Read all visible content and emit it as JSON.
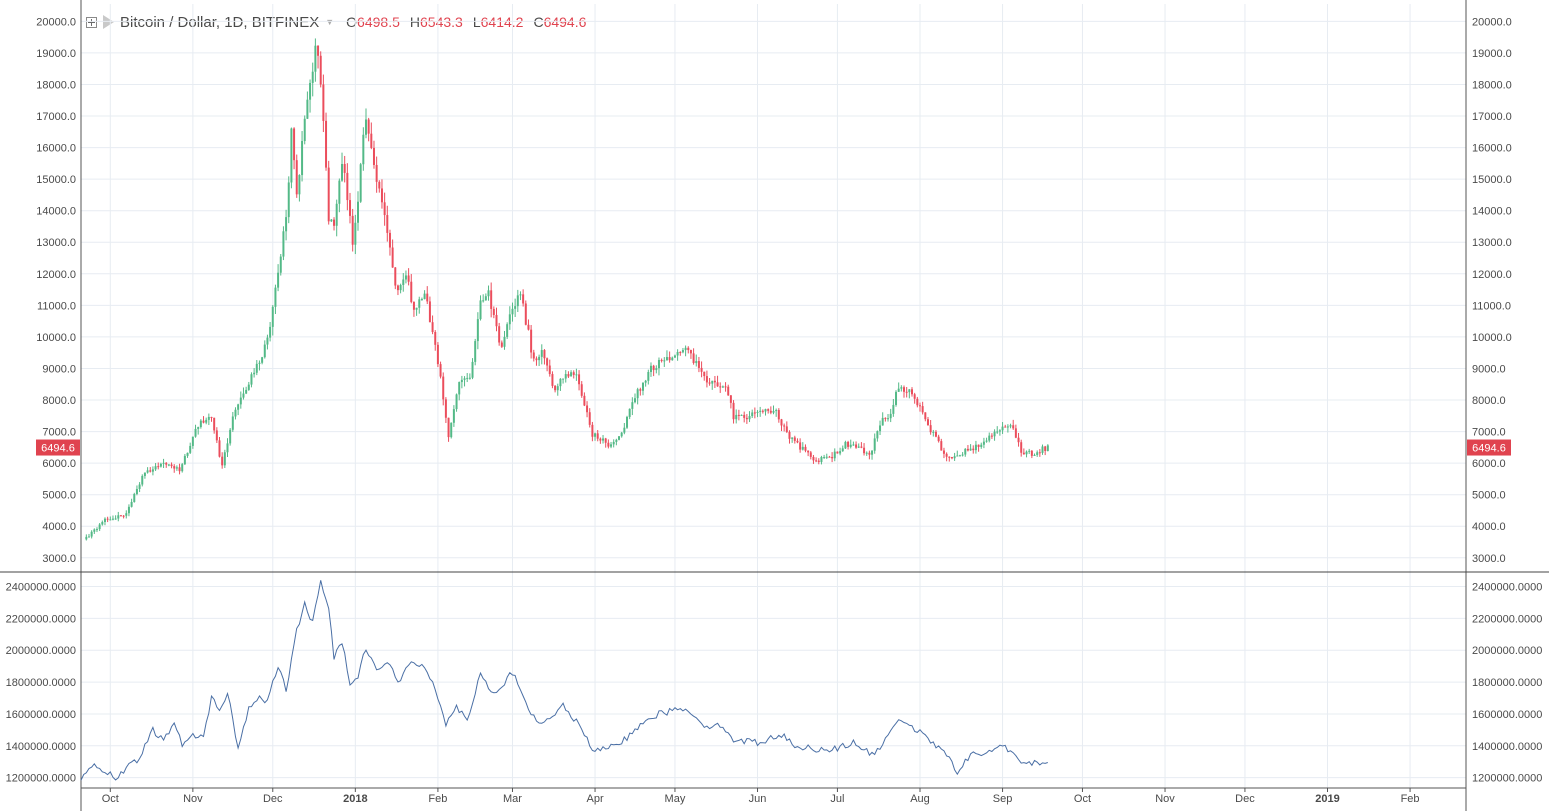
{
  "header": {
    "title": "Bitcoin / Dollar, 1D, BITFINEX",
    "ohlc": [
      {
        "label": "O",
        "value": "6498.5"
      },
      {
        "label": "H",
        "value": "6543.3"
      },
      {
        "label": "L",
        "value": "6414.2"
      },
      {
        "label": "C",
        "value": "6494.6"
      }
    ]
  },
  "colors": {
    "up": "#53b987",
    "down": "#eb4d5c",
    "volume_line": "#4a6fa5",
    "grid": "#e7ecf2",
    "axis_text": "#4a4a4a",
    "price_tag_bg": "#e0434f"
  },
  "chart_data": [
    {
      "type": "candlestick",
      "symbol": "Bitcoin / Dollar",
      "interval": "1D",
      "exchange": "BITFINEX",
      "last_price": "6494.6",
      "y_ticks": [
        "3000.0",
        "4000.0",
        "5000.0",
        "6000.0",
        "7000.0",
        "8000.0",
        "9000.0",
        "10000.0",
        "11000.0",
        "12000.0",
        "13000.0",
        "14000.0",
        "15000.0",
        "16000.0",
        "17000.0",
        "18000.0",
        "19000.0",
        "20000.0"
      ],
      "ylim": [
        2550,
        20550
      ],
      "x_ticks": [
        "Oct",
        "Nov",
        "Dec",
        "2018",
        "Feb",
        "Mar",
        "Apr",
        "May",
        "Jun",
        "Jul",
        "Aug",
        "Sep",
        "Oct",
        "Nov",
        "Dec",
        "2019",
        "Feb"
      ],
      "x_tick_dates": [
        "2017-10-01",
        "2017-11-01",
        "2017-12-01",
        "2018-01-01",
        "2018-02-01",
        "2018-03-01",
        "2018-04-01",
        "2018-05-01",
        "2018-06-01",
        "2018-07-01",
        "2018-08-01",
        "2018-09-01",
        "2018-10-01",
        "2018-11-01",
        "2018-12-01",
        "2019-01-01",
        "2019-02-01"
      ],
      "x_range": [
        "2017-09-20",
        "2019-02-22"
      ],
      "close_anchors": [
        [
          "2017-09-22",
          3620
        ],
        [
          "2017-09-29",
          4200
        ],
        [
          "2017-10-07",
          4400
        ],
        [
          "2017-10-13",
          5600
        ],
        [
          "2017-10-20",
          5950
        ],
        [
          "2017-10-27",
          5800
        ],
        [
          "2017-11-03",
          7200
        ],
        [
          "2017-11-08",
          7400
        ],
        [
          "2017-11-12",
          5900
        ],
        [
          "2017-11-17",
          7800
        ],
        [
          "2017-11-26",
          9200
        ],
        [
          "2017-11-29",
          9900
        ],
        [
          "2017-12-06",
          13700
        ],
        [
          "2017-12-08",
          16400
        ],
        [
          "2017-12-10",
          14500
        ],
        [
          "2017-12-13",
          16800
        ],
        [
          "2017-12-17",
          19100
        ],
        [
          "2017-12-19",
          18200
        ],
        [
          "2017-12-22",
          13800
        ],
        [
          "2017-12-24",
          13700
        ],
        [
          "2017-12-27",
          15600
        ],
        [
          "2017-12-31",
          13100
        ],
        [
          "2018-01-02",
          14500
        ],
        [
          "2018-01-05",
          17100
        ],
        [
          "2018-01-09",
          15000
        ],
        [
          "2018-01-12",
          13800
        ],
        [
          "2018-01-16",
          11500
        ],
        [
          "2018-01-20",
          12000
        ],
        [
          "2018-01-23",
          10900
        ],
        [
          "2018-01-27",
          11400
        ],
        [
          "2018-01-30",
          10200
        ],
        [
          "2018-02-02",
          8700
        ],
        [
          "2018-02-05",
          6900
        ],
        [
          "2018-02-09",
          8500
        ],
        [
          "2018-02-13",
          8700
        ],
        [
          "2018-02-17",
          11100
        ],
        [
          "2018-02-20",
          11400
        ],
        [
          "2018-02-25",
          9600
        ],
        [
          "2018-03-01",
          10900
        ],
        [
          "2018-03-04",
          11400
        ],
        [
          "2018-03-09",
          9200
        ],
        [
          "2018-03-12",
          9500
        ],
        [
          "2018-03-17",
          8200
        ],
        [
          "2018-03-21",
          8900
        ],
        [
          "2018-03-25",
          8800
        ],
        [
          "2018-03-31",
          6900
        ],
        [
          "2018-04-06",
          6600
        ],
        [
          "2018-04-11",
          6900
        ],
        [
          "2018-04-15",
          7900
        ],
        [
          "2018-04-21",
          8900
        ],
        [
          "2018-04-26",
          9200
        ],
        [
          "2018-05-05",
          9700
        ],
        [
          "2018-05-08",
          9300
        ],
        [
          "2018-05-13",
          8600
        ],
        [
          "2018-05-20",
          8500
        ],
        [
          "2018-05-23",
          7500
        ],
        [
          "2018-05-31",
          7500
        ],
        [
          "2018-06-08",
          7700
        ],
        [
          "2018-06-12",
          6900
        ],
        [
          "2018-06-17",
          6500
        ],
        [
          "2018-06-23",
          6100
        ],
        [
          "2018-06-29",
          6200
        ],
        [
          "2018-07-04",
          6600
        ],
        [
          "2018-07-10",
          6400
        ],
        [
          "2018-07-13",
          6200
        ],
        [
          "2018-07-17",
          7300
        ],
        [
          "2018-07-20",
          7400
        ],
        [
          "2018-07-24",
          8400
        ],
        [
          "2018-07-29",
          8200
        ],
        [
          "2018-08-03",
          7400
        ],
        [
          "2018-08-10",
          6300
        ],
        [
          "2018-08-14",
          6200
        ],
        [
          "2018-08-19",
          6400
        ],
        [
          "2018-08-25",
          6700
        ],
        [
          "2018-08-30",
          7000
        ],
        [
          "2018-09-04",
          7300
        ],
        [
          "2018-09-08",
          6400
        ],
        [
          "2018-09-12",
          6300
        ],
        [
          "2018-09-18",
          6500
        ]
      ]
    },
    {
      "type": "line",
      "name": "indicator",
      "y_ticks": [
        "1200000.0000",
        "1400000.0000",
        "1600000.0000",
        "1800000.0000",
        "2000000.0000",
        "2200000.0000",
        "2400000.0000"
      ],
      "ylim": [
        1135000,
        2485000
      ],
      "anchors": [
        [
          "2017-09-20",
          1200000
        ],
        [
          "2017-09-25",
          1270000
        ],
        [
          "2017-09-30",
          1230000
        ],
        [
          "2017-10-03",
          1190000
        ],
        [
          "2017-10-08",
          1270000
        ],
        [
          "2017-10-12",
          1320000
        ],
        [
          "2017-10-17",
          1500000
        ],
        [
          "2017-10-21",
          1430000
        ],
        [
          "2017-10-25",
          1550000
        ],
        [
          "2017-10-28",
          1400000
        ],
        [
          "2017-11-01",
          1470000
        ],
        [
          "2017-11-05",
          1460000
        ],
        [
          "2017-11-08",
          1700000
        ],
        [
          "2017-11-11",
          1620000
        ],
        [
          "2017-11-14",
          1740000
        ],
        [
          "2017-11-18",
          1380000
        ],
        [
          "2017-11-22",
          1640000
        ],
        [
          "2017-11-26",
          1700000
        ],
        [
          "2017-11-29",
          1680000
        ],
        [
          "2017-12-03",
          1900000
        ],
        [
          "2017-12-06",
          1750000
        ],
        [
          "2017-12-10",
          2120000
        ],
        [
          "2017-12-13",
          2300000
        ],
        [
          "2017-12-16",
          2170000
        ],
        [
          "2017-12-19",
          2430000
        ],
        [
          "2017-12-22",
          2260000
        ],
        [
          "2017-12-24",
          1960000
        ],
        [
          "2017-12-27",
          2050000
        ],
        [
          "2017-12-30",
          1800000
        ],
        [
          "2018-01-02",
          1840000
        ],
        [
          "2018-01-05",
          2020000
        ],
        [
          "2018-01-09",
          1880000
        ],
        [
          "2018-01-13",
          1930000
        ],
        [
          "2018-01-17",
          1800000
        ],
        [
          "2018-01-22",
          1920000
        ],
        [
          "2018-01-27",
          1900000
        ],
        [
          "2018-01-31",
          1770000
        ],
        [
          "2018-02-04",
          1530000
        ],
        [
          "2018-02-08",
          1650000
        ],
        [
          "2018-02-12",
          1560000
        ],
        [
          "2018-02-17",
          1860000
        ],
        [
          "2018-02-22",
          1720000
        ],
        [
          "2018-03-01",
          1860000
        ],
        [
          "2018-03-05",
          1710000
        ],
        [
          "2018-03-10",
          1540000
        ],
        [
          "2018-03-14",
          1560000
        ],
        [
          "2018-03-20",
          1650000
        ],
        [
          "2018-03-25",
          1550000
        ],
        [
          "2018-03-29",
          1440000
        ],
        [
          "2018-04-01",
          1360000
        ],
        [
          "2018-04-07",
          1390000
        ],
        [
          "2018-04-13",
          1450000
        ],
        [
          "2018-04-20",
          1570000
        ],
        [
          "2018-04-25",
          1600000
        ],
        [
          "2018-05-05",
          1640000
        ],
        [
          "2018-05-12",
          1530000
        ],
        [
          "2018-05-19",
          1520000
        ],
        [
          "2018-05-23",
          1440000
        ],
        [
          "2018-06-01",
          1420000
        ],
        [
          "2018-06-10",
          1470000
        ],
        [
          "2018-06-15",
          1400000
        ],
        [
          "2018-06-23",
          1380000
        ],
        [
          "2018-06-30",
          1380000
        ],
        [
          "2018-07-07",
          1420000
        ],
        [
          "2018-07-14",
          1340000
        ],
        [
          "2018-07-20",
          1450000
        ],
        [
          "2018-07-24",
          1580000
        ],
        [
          "2018-07-29",
          1520000
        ],
        [
          "2018-08-05",
          1430000
        ],
        [
          "2018-08-12",
          1320000
        ],
        [
          "2018-08-15",
          1240000
        ],
        [
          "2018-08-20",
          1340000
        ],
        [
          "2018-08-27",
          1360000
        ],
        [
          "2018-09-01",
          1410000
        ],
        [
          "2018-09-05",
          1340000
        ],
        [
          "2018-09-09",
          1280000
        ],
        [
          "2018-09-14",
          1300000
        ],
        [
          "2018-09-18",
          1300000
        ]
      ]
    }
  ]
}
